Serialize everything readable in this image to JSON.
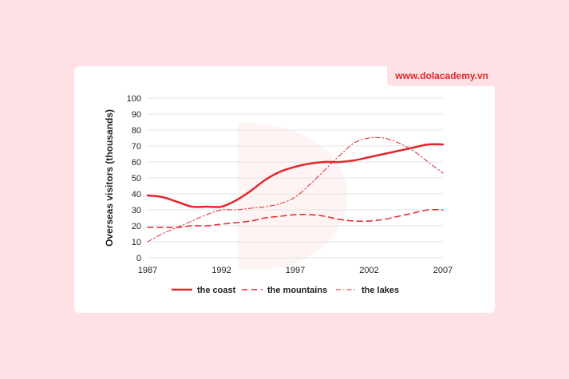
{
  "brand": {
    "text": "www.dolacademy.vn"
  },
  "colors": {
    "accent": "#e3262b",
    "background": "#fde1e4",
    "card": "#ffffff",
    "grid": "#e3e3e3"
  },
  "chart_data": {
    "type": "line",
    "xlabel": "",
    "ylabel": "Overseas visitors (thousands)",
    "x": [
      1987,
      1988,
      1989,
      1990,
      1991,
      1992,
      1993,
      1994,
      1995,
      1996,
      1997,
      1998,
      1999,
      2000,
      2001,
      2002,
      2003,
      2004,
      2005,
      2006,
      2007
    ],
    "x_ticks": [
      "1987",
      "1992",
      "1997",
      "2002",
      "2007"
    ],
    "y_ticks": [
      "0",
      "10",
      "20",
      "30",
      "40",
      "50",
      "60",
      "70",
      "80",
      "90",
      "100"
    ],
    "ylim": [
      0,
      100
    ],
    "grid": true,
    "legend_position": "bottom",
    "series": [
      {
        "name": "the coast",
        "style": "solid",
        "values": [
          39,
          38,
          35,
          32,
          32,
          32,
          36,
          42,
          49,
          54,
          57,
          59,
          60,
          60,
          61,
          63,
          65,
          67,
          69,
          71,
          71
        ]
      },
      {
        "name": "the mountains",
        "style": "dashed",
        "values": [
          19,
          19,
          19,
          20,
          20,
          21,
          22,
          23,
          25,
          26,
          27,
          27,
          26,
          24,
          23,
          23,
          24,
          26,
          28,
          30,
          30
        ]
      },
      {
        "name": "the lakes",
        "style": "dashdot",
        "values": [
          10,
          15,
          19,
          23,
          27,
          30,
          30,
          31,
          32,
          34,
          38,
          46,
          55,
          64,
          72,
          75,
          75,
          72,
          67,
          60,
          53
        ]
      }
    ]
  }
}
